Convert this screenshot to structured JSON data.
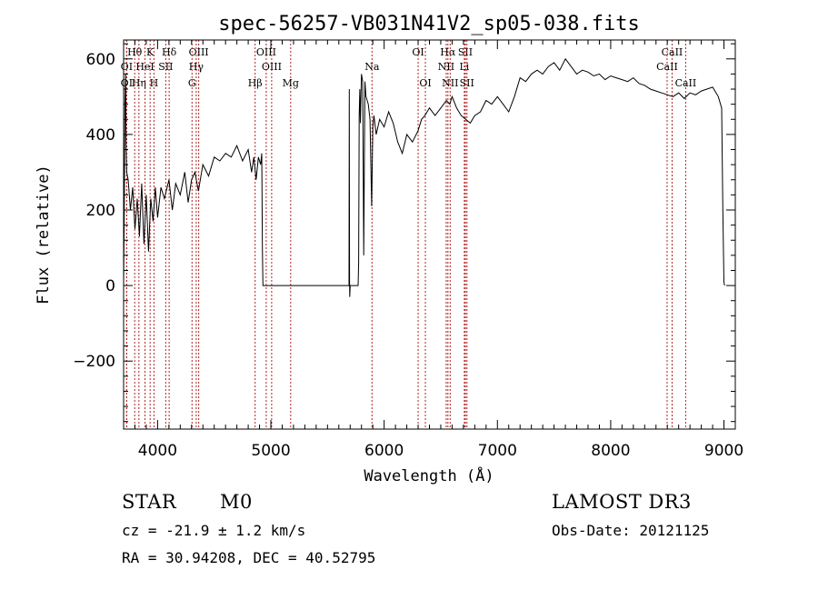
{
  "chart_data": {
    "type": "line",
    "title": "spec-56257-VB031N41V2_sp05-038.fits",
    "xlabel": "Wavelength (Å)",
    "ylabel": "Flux (relative)",
    "xlim": [
      3700,
      9100
    ],
    "ylim": [
      -380,
      650
    ],
    "xticks": [
      4000,
      5000,
      6000,
      7000,
      8000,
      9000
    ],
    "yticks": [
      -200,
      0,
      200,
      400,
      600
    ],
    "grid": false,
    "series": [
      {
        "color": "#000000",
        "points": [
          [
            3700,
            5
          ],
          [
            3705,
            170
          ],
          [
            3712,
            490
          ],
          [
            3718,
            560
          ],
          [
            3722,
            380
          ],
          [
            3727,
            300
          ],
          [
            3740,
            280
          ],
          [
            3760,
            200
          ],
          [
            3780,
            260
          ],
          [
            3800,
            150
          ],
          [
            3820,
            230
          ],
          [
            3840,
            130
          ],
          [
            3860,
            270
          ],
          [
            3880,
            110
          ],
          [
            3900,
            240
          ],
          [
            3920,
            90
          ],
          [
            3940,
            230
          ],
          [
            3960,
            170
          ],
          [
            3980,
            260
          ],
          [
            4000,
            180
          ],
          [
            4030,
            260
          ],
          [
            4060,
            230
          ],
          [
            4100,
            280
          ],
          [
            4130,
            200
          ],
          [
            4160,
            270
          ],
          [
            4200,
            240
          ],
          [
            4240,
            300
          ],
          [
            4270,
            220
          ],
          [
            4300,
            280
          ],
          [
            4330,
            300
          ],
          [
            4360,
            250
          ],
          [
            4400,
            320
          ],
          [
            4450,
            290
          ],
          [
            4500,
            340
          ],
          [
            4550,
            330
          ],
          [
            4600,
            350
          ],
          [
            4650,
            340
          ],
          [
            4700,
            370
          ],
          [
            4750,
            330
          ],
          [
            4800,
            360
          ],
          [
            4830,
            300
          ],
          [
            4850,
            340
          ],
          [
            4870,
            280
          ],
          [
            4890,
            340
          ],
          [
            4910,
            320
          ],
          [
            4920,
            350
          ],
          [
            4925,
            100
          ],
          [
            4930,
            0
          ],
          [
            5000,
            0
          ],
          [
            5500,
            0
          ],
          [
            5690,
            0
          ],
          [
            5692,
            520
          ],
          [
            5695,
            10
          ],
          [
            5696,
            -30
          ],
          [
            5700,
            0
          ],
          [
            5770,
            0
          ],
          [
            5775,
            60
          ],
          [
            5780,
            450
          ],
          [
            5785,
            520
          ],
          [
            5790,
            430
          ],
          [
            5800,
            560
          ],
          [
            5810,
            540
          ],
          [
            5820,
            80
          ],
          [
            5825,
            300
          ],
          [
            5830,
            540
          ],
          [
            5840,
            500
          ],
          [
            5860,
            480
          ],
          [
            5875,
            440
          ],
          [
            5890,
            210
          ],
          [
            5900,
            420
          ],
          [
            5910,
            450
          ],
          [
            5930,
            400
          ],
          [
            5960,
            440
          ],
          [
            6000,
            420
          ],
          [
            6040,
            460
          ],
          [
            6080,
            430
          ],
          [
            6120,
            380
          ],
          [
            6160,
            350
          ],
          [
            6200,
            400
          ],
          [
            6250,
            380
          ],
          [
            6300,
            410
          ],
          [
            6330,
            440
          ],
          [
            6360,
            450
          ],
          [
            6400,
            470
          ],
          [
            6450,
            450
          ],
          [
            6500,
            470
          ],
          [
            6550,
            490
          ],
          [
            6580,
            480
          ],
          [
            6600,
            500
          ],
          [
            6640,
            470
          ],
          [
            6680,
            450
          ],
          [
            6720,
            440
          ],
          [
            6760,
            430
          ],
          [
            6800,
            450
          ],
          [
            6850,
            460
          ],
          [
            6900,
            490
          ],
          [
            6950,
            480
          ],
          [
            7000,
            500
          ],
          [
            7050,
            480
          ],
          [
            7100,
            460
          ],
          [
            7150,
            500
          ],
          [
            7200,
            550
          ],
          [
            7250,
            540
          ],
          [
            7300,
            560
          ],
          [
            7350,
            570
          ],
          [
            7400,
            560
          ],
          [
            7450,
            580
          ],
          [
            7500,
            590
          ],
          [
            7550,
            570
          ],
          [
            7600,
            600
          ],
          [
            7650,
            580
          ],
          [
            7700,
            560
          ],
          [
            7750,
            570
          ],
          [
            7800,
            565
          ],
          [
            7850,
            555
          ],
          [
            7900,
            560
          ],
          [
            7950,
            545
          ],
          [
            8000,
            555
          ],
          [
            8050,
            550
          ],
          [
            8100,
            545
          ],
          [
            8150,
            540
          ],
          [
            8200,
            550
          ],
          [
            8250,
            535
          ],
          [
            8300,
            530
          ],
          [
            8350,
            520
          ],
          [
            8400,
            515
          ],
          [
            8450,
            510
          ],
          [
            8500,
            505
          ],
          [
            8550,
            500
          ],
          [
            8600,
            510
          ],
          [
            8650,
            495
          ],
          [
            8700,
            510
          ],
          [
            8750,
            505
          ],
          [
            8800,
            515
          ],
          [
            8850,
            520
          ],
          [
            8900,
            525
          ],
          [
            8950,
            500
          ],
          [
            8980,
            470
          ],
          [
            8990,
            200
          ],
          [
            9000,
            10
          ],
          [
            9005,
            0
          ]
        ]
      }
    ],
    "lines": [
      {
        "label": "Hθ",
        "wavelength": 3798,
        "position": "top",
        "row": 1
      },
      {
        "label": "K",
        "wavelength": 3934,
        "position": "top",
        "row": 1
      },
      {
        "label": "Hδ",
        "wavelength": 4102,
        "position": "top",
        "row": 1
      },
      {
        "label": "OIII",
        "wavelength": 4363,
        "position": "top",
        "row": 1
      },
      {
        "label": "OIII",
        "wavelength": 4959,
        "position": "top",
        "row": 1
      },
      {
        "label": "OI",
        "wavelength": 6300,
        "position": "top",
        "row": 1
      },
      {
        "label": "Hα",
        "wavelength": 6563,
        "position": "top",
        "row": 1
      },
      {
        "label": "SII",
        "wavelength": 6717,
        "position": "top",
        "row": 1
      },
      {
        "label": "CaII",
        "wavelength": 8542,
        "position": "top",
        "row": 1
      },
      {
        "label": "OI",
        "wavelength": 3727,
        "position": "top",
        "row": 2
      },
      {
        "label": "HeI",
        "wavelength": 3889,
        "position": "top",
        "row": 2
      },
      {
        "label": "SII",
        "wavelength": 4072,
        "position": "top",
        "row": 2
      },
      {
        "label": "Hγ",
        "wavelength": 4341,
        "position": "top",
        "row": 2
      },
      {
        "label": "OIII",
        "wavelength": 5007,
        "position": "top",
        "row": 2
      },
      {
        "label": "Na",
        "wavelength": 5893,
        "position": "top",
        "row": 2
      },
      {
        "label": "NII",
        "wavelength": 6548,
        "position": "top",
        "row": 2
      },
      {
        "label": "Li",
        "wavelength": 6708,
        "position": "top",
        "row": 2
      },
      {
        "label": "CaII",
        "wavelength": 8498,
        "position": "top",
        "row": 2
      },
      {
        "label": "OI",
        "wavelength": 3727,
        "position": "top",
        "row": 3
      },
      {
        "label": "Hη",
        "wavelength": 3835,
        "position": "top",
        "row": 3
      },
      {
        "label": "H",
        "wavelength": 3968,
        "position": "top",
        "row": 3
      },
      {
        "label": "G",
        "wavelength": 4304,
        "position": "top",
        "row": 3
      },
      {
        "label": "Hβ",
        "wavelength": 4861,
        "position": "top",
        "row": 3
      },
      {
        "label": "Mg",
        "wavelength": 5175,
        "position": "top",
        "row": 3
      },
      {
        "label": "OI",
        "wavelength": 6364,
        "position": "top",
        "row": 3
      },
      {
        "label": "NII",
        "wavelength": 6583,
        "position": "top",
        "row": 3
      },
      {
        "label": "SII",
        "wavelength": 6731,
        "position": "top",
        "row": 3
      },
      {
        "label": "CaII",
        "wavelength": 8662,
        "position": "top",
        "row": 3
      }
    ],
    "line_color": "#b22222"
  },
  "info": {
    "object_class": "STAR",
    "subclass": "M0",
    "survey": "LAMOST DR3",
    "redshift": "cz = -21.9 ± 1.2 km/s",
    "obs_date": "Obs-Date: 20121125",
    "coords": "RA =  30.94208, DEC =  40.52795"
  }
}
